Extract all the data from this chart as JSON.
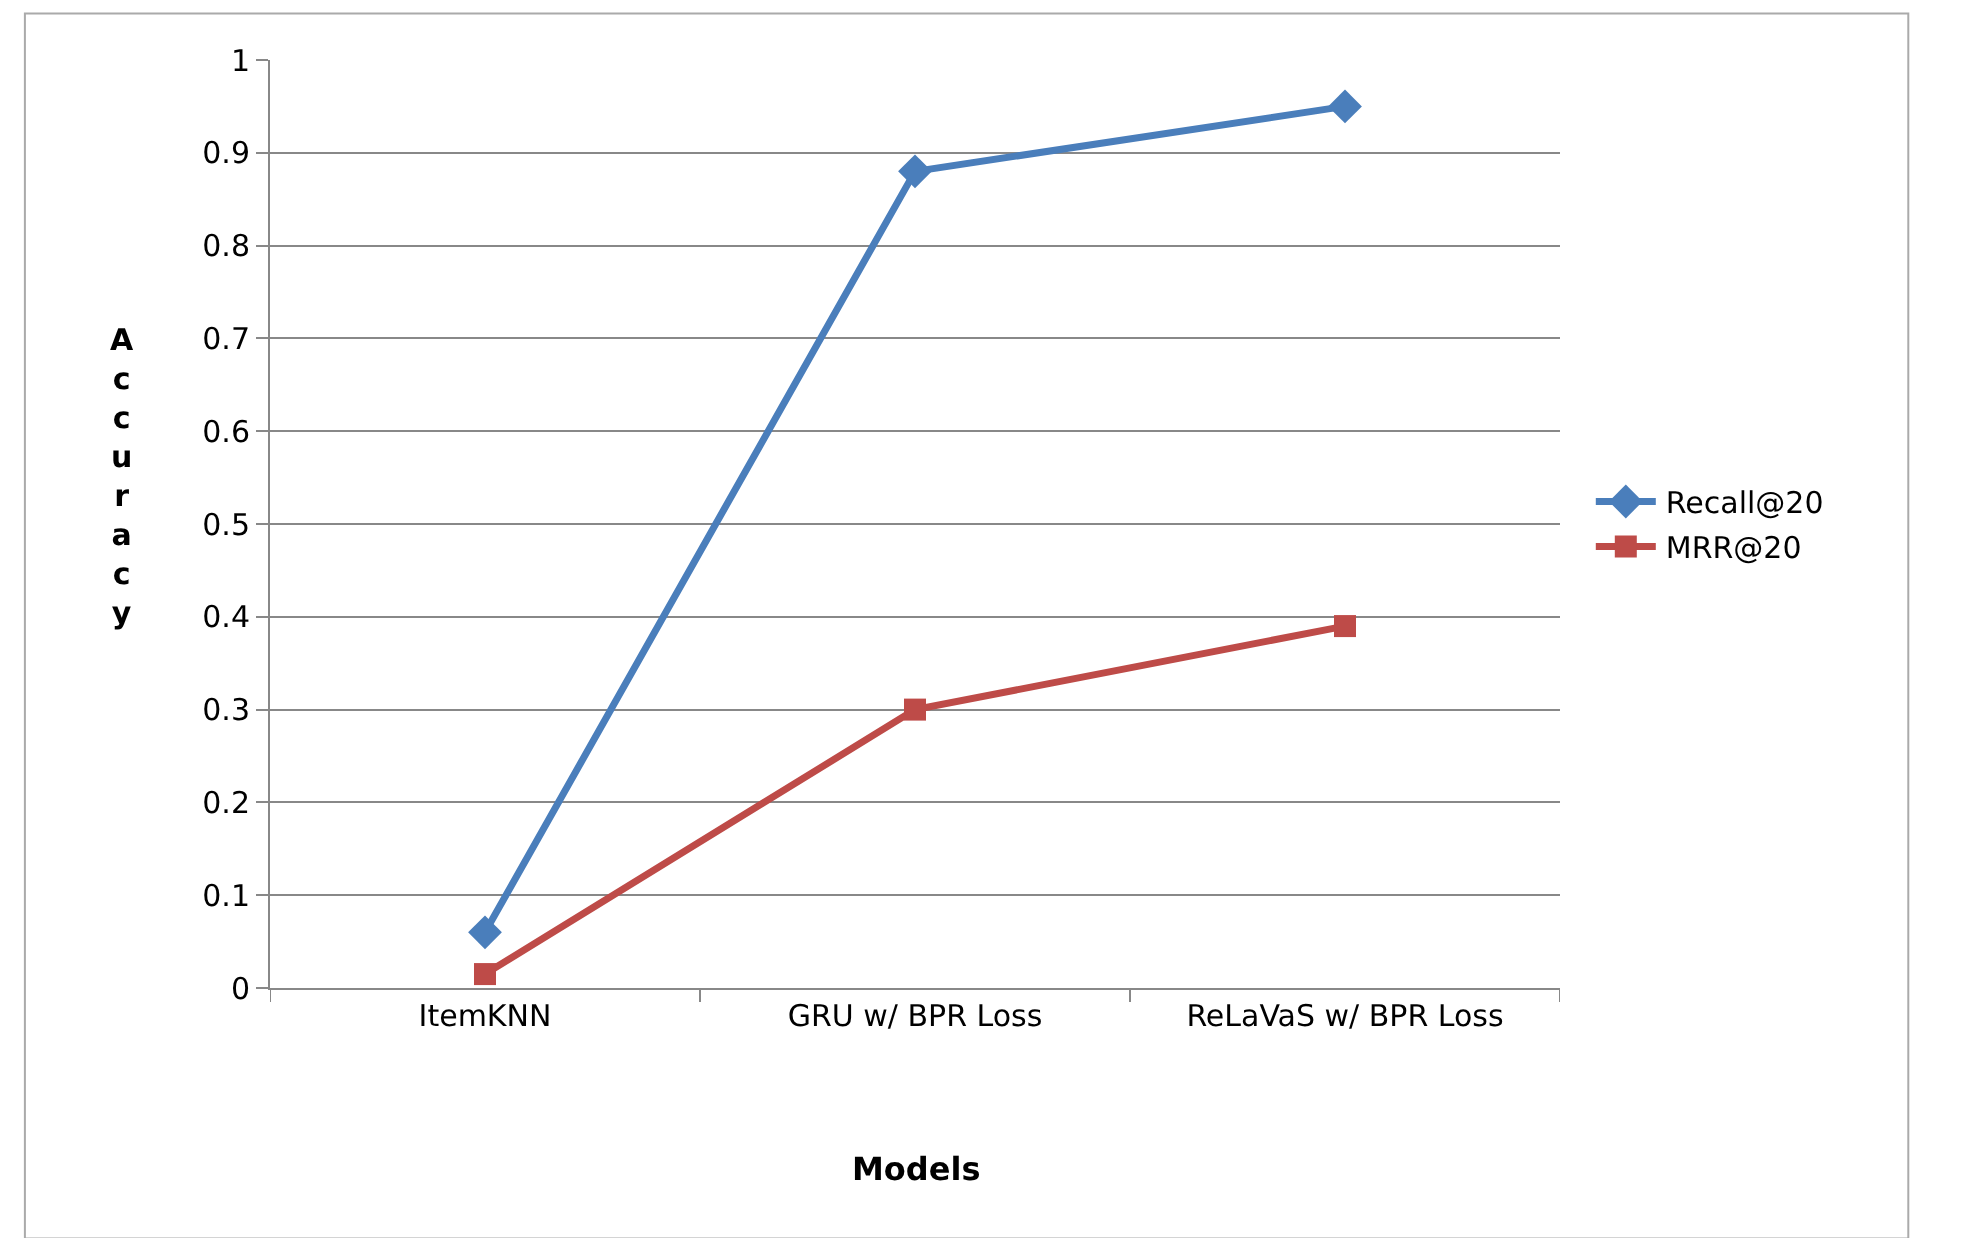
{
  "chart_data": {
    "type": "line",
    "xlabel": "Models",
    "ylabel": "Accuracy",
    "categories": [
      "ItemKNN",
      "GRU w/ BPR Loss",
      "ReLaVaS w/ BPR Loss"
    ],
    "series": [
      {
        "name": "Recall@20",
        "color": "#4a7ebb",
        "marker": "diamond",
        "values": [
          0.06,
          0.88,
          0.95
        ]
      },
      {
        "name": "MRR@20",
        "color": "#be4b48",
        "marker": "square",
        "values": [
          0.015,
          0.3,
          0.39
        ]
      }
    ],
    "ylim": [
      0,
      1
    ],
    "yticks": [
      0,
      0.1,
      0.2,
      0.3,
      0.4,
      0.5,
      0.6,
      0.7,
      0.8,
      0.9,
      1
    ],
    "grid": "y",
    "legend": "right",
    "line_style": "solid"
  }
}
